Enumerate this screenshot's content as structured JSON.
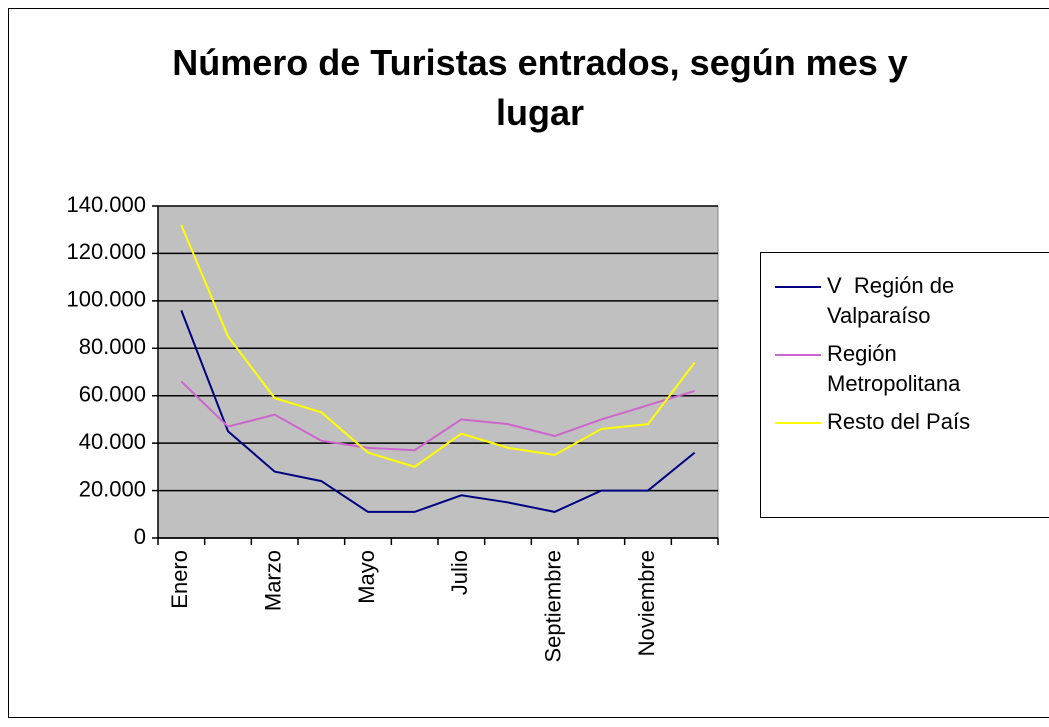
{
  "chart_data": {
    "type": "line",
    "title": "Número de Turistas entrados, según mes y lugar",
    "categories": [
      "Enero",
      null,
      "Marzo",
      null,
      "Mayo",
      null,
      "Julio",
      null,
      "Septiembre",
      null,
      "Noviembre",
      null
    ],
    "series": [
      {
        "name": "V  Región de Valparaíso",
        "color": "#000080",
        "values": [
          96000,
          45000,
          28000,
          24000,
          11000,
          11000,
          18000,
          15000,
          11000,
          20000,
          20000,
          36000
        ]
      },
      {
        "name": "Región Metropolitana",
        "color": "#cc66cc",
        "values": [
          66000,
          47000,
          52000,
          41000,
          38000,
          37000,
          50000,
          48000,
          43000,
          50000,
          56000,
          62000
        ]
      },
      {
        "name": "Resto del País",
        "color": "#ffff00",
        "values": [
          132000,
          85000,
          59000,
          53000,
          36000,
          30000,
          44000,
          38000,
          35000,
          46000,
          48000,
          74000
        ]
      }
    ],
    "ylim": [
      0,
      140000
    ],
    "yticks": [
      0,
      {
        "value": 20000,
        "label": "20.000"
      },
      {
        "value": 40000,
        "label": "40.000"
      },
      {
        "value": 60000,
        "label": "60.000"
      },
      {
        "value": 80000,
        "label": "80.000"
      },
      {
        "value": 100000,
        "label": "100.000"
      },
      {
        "value": 120000,
        "label": "120.000"
      },
      {
        "value": 140000,
        "label": "140.000"
      }
    ],
    "grid": true,
    "legend": "right"
  }
}
